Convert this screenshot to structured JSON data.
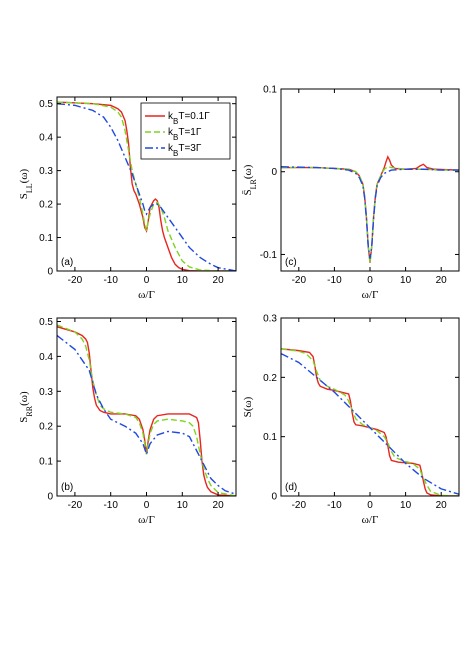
{
  "chart_data": [
    {
      "id": "a",
      "type": "line",
      "panel_label": "(a)",
      "xlabel": "ω/Γ",
      "ylabel": "S_LL(ω)",
      "ylabel_main": "S",
      "ylabel_sub": "LL",
      "ylabel_tail": "(ω)",
      "xlim": [
        -25,
        25
      ],
      "ylim": [
        0,
        0.52
      ],
      "xticks": [
        -20,
        -10,
        0,
        10,
        20
      ],
      "xtick_labels": [
        "-20",
        "-10",
        "0",
        "10",
        "20"
      ],
      "yticks": [
        0,
        0.1,
        0.2,
        0.3,
        0.4,
        0.5
      ],
      "ytick_labels": [
        "0",
        "0.1",
        "0.2",
        "0.3",
        "0.4",
        "0.5"
      ],
      "legend": {
        "placement": "top-right",
        "entries": [
          {
            "text_main": "k",
            "text_sub": "B",
            "text_tail": "T=0.1Γ",
            "series": 0
          },
          {
            "text_main": "k",
            "text_sub": "B",
            "text_tail": "T=1Γ",
            "series": 1
          },
          {
            "text_main": "k",
            "text_sub": "B",
            "text_tail": "T=3Γ",
            "series": 2
          }
        ]
      },
      "series": [
        {
          "name": "kBT=0.1Γ",
          "color": "#e8251f",
          "dash": "none",
          "x": [
            -25,
            -15,
            -10,
            -8,
            -7,
            -6,
            -5.5,
            -5,
            -4.5,
            -4,
            -3.5,
            -3,
            -2,
            -1,
            -0.5,
            0,
            0.5,
            1,
            2,
            2.5,
            3,
            3.5,
            4,
            4.5,
            5,
            6,
            7,
            8,
            9,
            10,
            12,
            15,
            20,
            25
          ],
          "y": [
            0.505,
            0.5,
            0.495,
            0.485,
            0.475,
            0.45,
            0.42,
            0.38,
            0.31,
            0.26,
            0.24,
            0.23,
            0.2,
            0.16,
            0.13,
            0.12,
            0.15,
            0.19,
            0.21,
            0.215,
            0.21,
            0.19,
            0.15,
            0.12,
            0.1,
            0.07,
            0.04,
            0.02,
            0.01,
            0.005,
            0.001,
            0,
            0,
            0
          ]
        },
        {
          "name": "kBT=1Γ",
          "color": "#7ed321",
          "dash": "6,3",
          "x": [
            -25,
            -15,
            -10,
            -8,
            -7,
            -6,
            -5,
            -4,
            -3,
            -2,
            -1,
            -0.5,
            0,
            0.5,
            1,
            2,
            3,
            4,
            5,
            6,
            8,
            10,
            12,
            15,
            20,
            25
          ],
          "y": [
            0.505,
            0.5,
            0.49,
            0.475,
            0.46,
            0.42,
            0.36,
            0.3,
            0.26,
            0.22,
            0.17,
            0.14,
            0.12,
            0.15,
            0.17,
            0.2,
            0.205,
            0.19,
            0.16,
            0.12,
            0.07,
            0.03,
            0.012,
            0.003,
            0,
            0
          ]
        },
        {
          "name": "kBT=3Γ",
          "color": "#1f49e0",
          "dash": "8,3,2,3",
          "x": [
            -25,
            -20,
            -15,
            -12,
            -10,
            -8,
            -6,
            -4,
            -2,
            -1,
            -0.5,
            0,
            0.5,
            1,
            2,
            3,
            4,
            6,
            8,
            10,
            12,
            15,
            18,
            20,
            25
          ],
          "y": [
            0.5,
            0.495,
            0.48,
            0.46,
            0.43,
            0.39,
            0.34,
            0.29,
            0.23,
            0.2,
            0.18,
            0.17,
            0.18,
            0.19,
            0.2,
            0.2,
            0.19,
            0.16,
            0.13,
            0.1,
            0.07,
            0.04,
            0.02,
            0.01,
            0
          ]
        }
      ]
    },
    {
      "id": "c",
      "type": "line",
      "panel_label": "(c)",
      "xlabel": "ω/Γ",
      "ylabel": "S̄_LR(ω)",
      "ylabel_main": "S̄",
      "ylabel_sub": "LR",
      "ylabel_tail": "(ω)",
      "xlim": [
        -25,
        25
      ],
      "ylim": [
        -0.12,
        0.1
      ],
      "xticks": [
        -20,
        -10,
        0,
        10,
        20
      ],
      "xtick_labels": [
        "-20",
        "-10",
        "0",
        "10",
        "20"
      ],
      "yticks": [
        -0.1,
        0,
        0.1
      ],
      "ytick_labels": [
        "-0.1",
        "0",
        "0.1"
      ],
      "series": [
        {
          "name": "kBT=0.1Γ",
          "color": "#e8251f",
          "dash": "none",
          "x": [
            -25,
            -15,
            -10,
            -6,
            -4,
            -3,
            -2,
            -1.5,
            -1,
            -0.5,
            0,
            0.5,
            1,
            1.5,
            2,
            3,
            4,
            4.5,
            5,
            5.5,
            6,
            7,
            10,
            13,
            14,
            15,
            16,
            18,
            25
          ],
          "y": [
            0.005,
            0.005,
            0.004,
            0.003,
            0,
            -0.005,
            -0.015,
            -0.03,
            -0.055,
            -0.09,
            -0.11,
            -0.09,
            -0.055,
            -0.03,
            -0.015,
            -0.005,
            0.005,
            0.012,
            0.018,
            0.014,
            0.008,
            0.004,
            0.003,
            0.004,
            0.007,
            0.009,
            0.005,
            0.003,
            0.002
          ]
        },
        {
          "name": "kBT=1Γ",
          "color": "#7ed321",
          "dash": "6,3",
          "x": [
            -25,
            -15,
            -10,
            -6,
            -4,
            -3,
            -2,
            -1.5,
            -1,
            -0.5,
            0,
            0.5,
            1,
            1.5,
            2,
            3,
            4,
            5,
            6,
            8,
            10,
            15,
            20,
            25
          ],
          "y": [
            0.005,
            0.005,
            0.004,
            0.003,
            0,
            -0.005,
            -0.015,
            -0.03,
            -0.055,
            -0.09,
            -0.11,
            -0.09,
            -0.055,
            -0.03,
            -0.015,
            -0.005,
            0.003,
            0.006,
            0.005,
            0.004,
            0.003,
            0.003,
            0.002,
            0.002
          ]
        },
        {
          "name": "kBT=3Γ",
          "color": "#1f49e0",
          "dash": "8,3,2,3",
          "x": [
            -25,
            -15,
            -10,
            -6,
            -4,
            -3,
            -2,
            -1.5,
            -1,
            -0.5,
            0,
            0.5,
            1,
            1.5,
            2,
            3,
            4,
            6,
            10,
            15,
            20,
            25
          ],
          "y": [
            0.006,
            0.005,
            0.004,
            0.002,
            -0.002,
            -0.007,
            -0.017,
            -0.032,
            -0.057,
            -0.09,
            -0.105,
            -0.09,
            -0.057,
            -0.032,
            -0.017,
            -0.007,
            -0.002,
            0.002,
            0.003,
            0.003,
            0.002,
            0.002
          ]
        }
      ]
    },
    {
      "id": "b",
      "type": "line",
      "panel_label": "(b)",
      "xlabel": "ω/Γ",
      "ylabel": "S_RR(ω)",
      "ylabel_main": "S",
      "ylabel_sub": "RR",
      "ylabel_tail": "(ω)",
      "xlim": [
        -25,
        25
      ],
      "ylim": [
        0,
        0.51
      ],
      "xticks": [
        -20,
        -10,
        0,
        10,
        20
      ],
      "xtick_labels": [
        "-20",
        "-10",
        "0",
        "10",
        "20"
      ],
      "yticks": [
        0,
        0.1,
        0.2,
        0.3,
        0.4,
        0.5
      ],
      "ytick_labels": [
        "0",
        "0.1",
        "0.2",
        "0.3",
        "0.4",
        "0.5"
      ],
      "series": [
        {
          "name": "kBT=0.1Γ",
          "color": "#e8251f",
          "dash": "none",
          "x": [
            -25,
            -20,
            -18,
            -17,
            -16.5,
            -16,
            -15.5,
            -15,
            -14.5,
            -14,
            -13,
            -12,
            -10,
            -6,
            -3,
            -2,
            -1,
            -0.5,
            0,
            0.5,
            1,
            2,
            3,
            6,
            10,
            12,
            13,
            14,
            14.5,
            15,
            15.5,
            16,
            16.5,
            17,
            18,
            20,
            25
          ],
          "y": [
            0.485,
            0.47,
            0.46,
            0.45,
            0.44,
            0.41,
            0.36,
            0.31,
            0.28,
            0.26,
            0.245,
            0.24,
            0.235,
            0.235,
            0.23,
            0.22,
            0.19,
            0.16,
            0.12,
            0.16,
            0.19,
            0.22,
            0.23,
            0.235,
            0.235,
            0.235,
            0.23,
            0.225,
            0.21,
            0.16,
            0.1,
            0.06,
            0.04,
            0.025,
            0.012,
            0.003,
            0
          ]
        },
        {
          "name": "kBT=1Γ",
          "color": "#7ed321",
          "dash": "6,3",
          "x": [
            -25,
            -20,
            -18,
            -17,
            -16,
            -15,
            -14,
            -13,
            -12,
            -10,
            -6,
            -3,
            -2,
            -1,
            -0.5,
            0,
            0.5,
            1,
            2,
            3,
            6,
            10,
            12,
            13,
            14,
            15,
            16,
            17,
            18,
            20,
            25
          ],
          "y": [
            0.49,
            0.47,
            0.45,
            0.43,
            0.39,
            0.33,
            0.29,
            0.26,
            0.25,
            0.24,
            0.235,
            0.225,
            0.21,
            0.18,
            0.15,
            0.12,
            0.15,
            0.18,
            0.205,
            0.215,
            0.22,
            0.215,
            0.21,
            0.2,
            0.17,
            0.12,
            0.08,
            0.05,
            0.03,
            0.01,
            0
          ]
        },
        {
          "name": "kBT=3Γ",
          "color": "#1f49e0",
          "dash": "8,3,2,3",
          "x": [
            -25,
            -20,
            -16,
            -14,
            -12,
            -10,
            -6,
            -3,
            -1,
            0,
            1,
            3,
            6,
            10,
            12,
            14,
            16,
            18,
            20,
            22,
            25
          ],
          "y": [
            0.46,
            0.42,
            0.36,
            0.29,
            0.25,
            0.22,
            0.2,
            0.18,
            0.15,
            0.12,
            0.15,
            0.175,
            0.185,
            0.18,
            0.17,
            0.13,
            0.09,
            0.05,
            0.03,
            0.015,
            0.005
          ]
        }
      ]
    },
    {
      "id": "d",
      "type": "line",
      "panel_label": "(d)",
      "xlabel": "ω/Γ",
      "ylabel": "S(ω)",
      "ylabel_main": "S(ω)",
      "ylabel_sub": "",
      "ylabel_tail": "",
      "xlim": [
        -25,
        25
      ],
      "ylim": [
        0,
        0.3
      ],
      "xticks": [
        -20,
        -10,
        0,
        10,
        20
      ],
      "xtick_labels": [
        "-20",
        "-10",
        "0",
        "10",
        "20"
      ],
      "yticks": [
        0,
        0.1,
        0.2,
        0.3
      ],
      "ytick_labels": [
        "0",
        "0.1",
        "0.2",
        "0.3"
      ],
      "series": [
        {
          "name": "kBT=0.1Γ",
          "color": "#e8251f",
          "dash": "none",
          "x": [
            -25,
            -20,
            -17,
            -16,
            -15.5,
            -15,
            -14.5,
            -14,
            -12,
            -10,
            -6,
            -5.5,
            -5,
            -4.5,
            -4,
            -2,
            0,
            2,
            4,
            4.5,
            5,
            5.5,
            6,
            8,
            10,
            12,
            14,
            14.5,
            15,
            15.5,
            16,
            17,
            20,
            25
          ],
          "y": [
            0.248,
            0.245,
            0.242,
            0.235,
            0.22,
            0.2,
            0.19,
            0.185,
            0.18,
            0.178,
            0.172,
            0.16,
            0.14,
            0.125,
            0.12,
            0.118,
            0.115,
            0.112,
            0.107,
            0.1,
            0.085,
            0.068,
            0.06,
            0.057,
            0.056,
            0.055,
            0.052,
            0.04,
            0.025,
            0.012,
            0.005,
            0.002,
            0,
            0
          ]
        },
        {
          "name": "kBT=1Γ",
          "color": "#7ed321",
          "dash": "6,3",
          "x": [
            -25,
            -20,
            -18,
            -16,
            -15,
            -14,
            -12,
            -10,
            -7,
            -6,
            -5,
            -4,
            -2,
            0,
            2,
            4,
            5,
            6,
            7,
            10,
            12,
            14,
            15,
            16,
            17,
            20,
            25
          ],
          "y": [
            0.248,
            0.244,
            0.24,
            0.228,
            0.21,
            0.195,
            0.185,
            0.18,
            0.17,
            0.16,
            0.145,
            0.13,
            0.12,
            0.115,
            0.11,
            0.1,
            0.09,
            0.075,
            0.065,
            0.058,
            0.055,
            0.045,
            0.03,
            0.018,
            0.008,
            0.001,
            0
          ]
        },
        {
          "name": "kBT=3Γ",
          "color": "#1f49e0",
          "dash": "8,3,2,3",
          "x": [
            -25,
            -20,
            -15,
            -10,
            -5,
            0,
            5,
            10,
            15,
            20,
            25
          ],
          "y": [
            0.24,
            0.225,
            0.2,
            0.175,
            0.145,
            0.115,
            0.085,
            0.055,
            0.03,
            0.012,
            0.003
          ]
        }
      ]
    }
  ]
}
